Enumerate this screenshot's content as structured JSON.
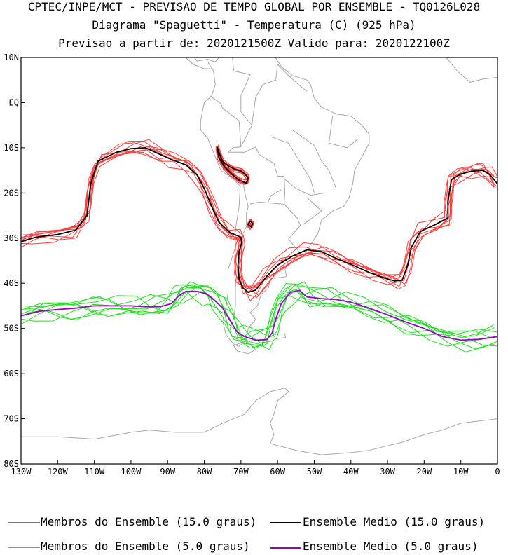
{
  "header": {
    "line1": "CPTEC/INPE/MCT - PREVISAO DE TEMPO GLOBAL POR ENSEMBLE - TQ0126L028",
    "line2": "Diagrama \"Spaguetti\" - Temperatura (C) (925 hPa)",
    "line3": "Previsao a partir de: 2020121500Z  Valido para: 2020122100Z"
  },
  "legend": {
    "members15": "Membros do Ensemble (15.0 graus)",
    "mean15": "Ensemble Medio (15.0 graus)",
    "members5": "Membros do Ensemble (5.0 graus)",
    "mean5": "Ensemble Medio (5.0 graus)"
  },
  "colors": {
    "members15": "#ff3b3b",
    "mean15": "#000000",
    "members5": "#22dd22",
    "mean5": "#9900cc",
    "map": "#a8a8a8"
  },
  "chart_data": {
    "type": "line",
    "title": "Diagrama \"Spaguetti\" - Temperatura (C) (925 hPa)",
    "xlim": [
      -130,
      0
    ],
    "ylim": [
      -80,
      10
    ],
    "x_ticks": [
      -130,
      -120,
      -110,
      -100,
      -90,
      -80,
      -70,
      -60,
      -50,
      -40,
      -30,
      -20,
      -10,
      0
    ],
    "x_tick_labels": [
      "130W",
      "120W",
      "110W",
      "100W",
      "90W",
      "80W",
      "70W",
      "60W",
      "50W",
      "40W",
      "30W",
      "20W",
      "10W",
      "0"
    ],
    "y_ticks": [
      10,
      0,
      -10,
      -20,
      -30,
      -40,
      -50,
      -60,
      -70,
      -80
    ],
    "y_tick_labels": [
      "10N",
      "EQ",
      "10S",
      "20S",
      "30S",
      "40S",
      "50S",
      "60S",
      "70S",
      "80S"
    ],
    "member_count": 8,
    "series": [
      {
        "name": "Ensemble Medio (15.0 graus)",
        "segments": [
          [
            [
              -130,
              -30.8
            ],
            [
              -126,
              -29.8
            ],
            [
              -120,
              -29.2
            ],
            [
              -115,
              -28.2
            ],
            [
              -112,
              -25
            ],
            [
              -111,
              -18
            ],
            [
              -109,
              -13
            ],
            [
              -104,
              -11
            ],
            [
              -100,
              -10.2
            ],
            [
              -96,
              -10
            ],
            [
              -92,
              -11.5
            ],
            [
              -89,
              -12.6
            ],
            [
              -85,
              -13.8
            ],
            [
              -82,
              -16
            ],
            [
              -80,
              -19
            ],
            [
              -78,
              -23
            ],
            [
              -76,
              -26.5
            ],
            [
              -73,
              -28.8
            ],
            [
              -70,
              -29.8
            ],
            [
              -69.8,
              -31
            ],
            [
              -70.5,
              -33
            ],
            [
              -70.8,
              -36
            ],
            [
              -70.5,
              -39
            ],
            [
              -69.5,
              -41
            ],
            [
              -68,
              -42
            ],
            [
              -66,
              -41.5
            ],
            [
              -63,
              -38.5
            ],
            [
              -60,
              -36
            ],
            [
              -56,
              -34
            ],
            [
              -52,
              -32.6
            ],
            [
              -48,
              -33
            ],
            [
              -44,
              -34.5
            ],
            [
              -40,
              -35.8
            ],
            [
              -35,
              -37.6
            ],
            [
              -31,
              -38.8
            ],
            [
              -28,
              -39.5
            ],
            [
              -26,
              -39.3
            ],
            [
              -24.5,
              -36
            ],
            [
              -23.5,
              -32
            ],
            [
              -21,
              -28.5
            ],
            [
              -17,
              -27
            ],
            [
              -13.5,
              -25.5
            ],
            [
              -13.5,
              -22
            ],
            [
              -13,
              -19
            ],
            [
              -12.5,
              -17
            ],
            [
              -10,
              -15.8
            ],
            [
              -7,
              -15.2
            ],
            [
              -4,
              -15
            ],
            [
              -2,
              -16
            ],
            [
              0,
              -18
            ]
          ],
          [
            [
              -76.5,
              -9.8
            ],
            [
              -76,
              -11
            ],
            [
              -75,
              -13
            ],
            [
              -73.2,
              -14.2
            ],
            [
              -71.5,
              -14.8
            ],
            [
              -69.8,
              -15.2
            ],
            [
              -68.7,
              -16
            ],
            [
              -68,
              -16.8
            ],
            [
              -68.5,
              -17.8
            ],
            [
              -70.5,
              -17.2
            ],
            [
              -72.5,
              -15.8
            ],
            [
              -74.5,
              -14.2
            ],
            [
              -76,
              -12.2
            ],
            [
              -76.5,
              -9.8
            ]
          ],
          [
            [
              -67.5,
              -26.2
            ],
            [
              -66.8,
              -26.8
            ],
            [
              -67.2,
              -27.5
            ],
            [
              -68,
              -27
            ],
            [
              -67.5,
              -26.2
            ]
          ]
        ]
      },
      {
        "name": "Ensemble Medio (5.0 graus)",
        "segments": [
          [
            [
              -130,
              -47.2
            ],
            [
              -125,
              -46.2
            ],
            [
              -120,
              -45.8
            ],
            [
              -115,
              -45.5
            ],
            [
              -110,
              -45
            ],
            [
              -105,
              -45
            ],
            [
              -100,
              -45
            ],
            [
              -96,
              -45.2
            ],
            [
              -92,
              -45.2
            ],
            [
              -89,
              -44.5
            ],
            [
              -87,
              -42.8
            ],
            [
              -85,
              -41.8
            ],
            [
              -82,
              -41.8
            ],
            [
              -79.5,
              -42.3
            ],
            [
              -77.5,
              -43.5
            ],
            [
              -75,
              -45.5
            ],
            [
              -73,
              -48.2
            ],
            [
              -71,
              -50.8
            ],
            [
              -69,
              -51.8
            ],
            [
              -66,
              -52.6
            ],
            [
              -63,
              -52.5
            ],
            [
              -61.5,
              -51
            ],
            [
              -60.5,
              -48
            ],
            [
              -59,
              -44.5
            ],
            [
              -56.5,
              -42
            ],
            [
              -54,
              -41.6
            ],
            [
              -52,
              -43
            ],
            [
              -48,
              -43.4
            ],
            [
              -44,
              -43.6
            ],
            [
              -40,
              -44.2
            ],
            [
              -35,
              -45.5
            ],
            [
              -30,
              -47
            ],
            [
              -25,
              -48.6
            ],
            [
              -20,
              -50
            ],
            [
              -15,
              -51.8
            ],
            [
              -10,
              -52.6
            ],
            [
              -5,
              -52.4
            ],
            [
              0,
              -51.8
            ]
          ]
        ]
      }
    ]
  }
}
